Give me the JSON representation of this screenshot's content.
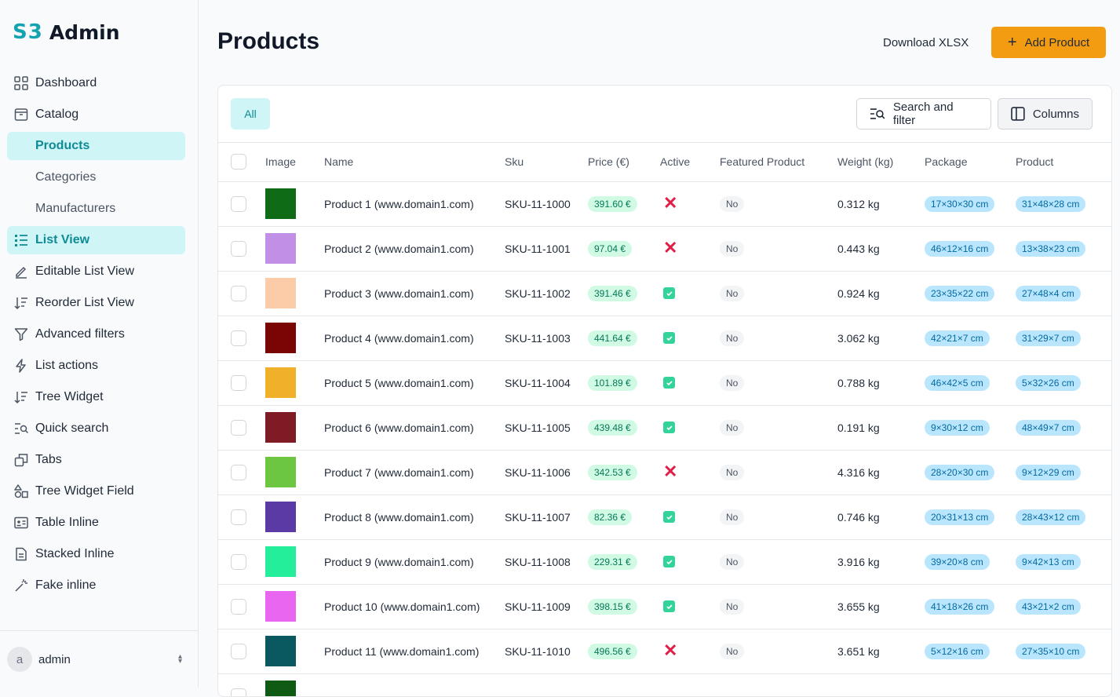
{
  "app": {
    "logo_mark": "S3",
    "logo_text": "Admin"
  },
  "sidebar": {
    "items": [
      {
        "label": "Dashboard",
        "icon": "dashboard-grid-icon"
      },
      {
        "label": "Catalog",
        "icon": "archive-box-icon"
      },
      {
        "label": "Products",
        "icon": "",
        "active": true
      },
      {
        "label": "Categories",
        "icon": ""
      },
      {
        "label": "Manufacturers",
        "icon": ""
      },
      {
        "label": "List View",
        "icon": "list-icon",
        "active": true
      },
      {
        "label": "Editable List View",
        "icon": "pencil-icon"
      },
      {
        "label": "Reorder List View",
        "icon": "sort-icon"
      },
      {
        "label": "Advanced filters",
        "icon": "filter-icon"
      },
      {
        "label": "List actions",
        "icon": "bolt-icon"
      },
      {
        "label": "Tree Widget",
        "icon": "tree-sort-icon"
      },
      {
        "label": "Quick search",
        "icon": "quick-search-icon"
      },
      {
        "label": "Tabs",
        "icon": "tabs-icon"
      },
      {
        "label": "Tree Widget Field",
        "icon": "shapes-icon"
      },
      {
        "label": "Table Inline",
        "icon": "id-card-icon"
      },
      {
        "label": "Stacked Inline",
        "icon": "document-icon"
      },
      {
        "label": "Fake inline",
        "icon": "magic-wand-icon"
      }
    ]
  },
  "user": {
    "initial": "a",
    "name": "admin"
  },
  "header": {
    "title": "Products",
    "download_label": "Download XLSX",
    "add_label": "Add Product"
  },
  "toolbar": {
    "tab_all": "All",
    "search_label": "Search and filter",
    "columns_label": "Columns"
  },
  "table": {
    "columns": [
      "Image",
      "Name",
      "Sku",
      "Price (€)",
      "Active",
      "Featured Product",
      "Weight (kg)",
      "Package",
      "Product"
    ],
    "rows": [
      {
        "color": "#0f6b16",
        "name": "Product 1 (www.domain1.com)",
        "sku": "SKU-11-1000",
        "price": "391.60 €",
        "active": false,
        "featured": "No",
        "weight": "0.312 kg",
        "package": "17×30×30 cm",
        "product": "31×48×28 cm"
      },
      {
        "color": "#c28fe6",
        "name": "Product 2 (www.domain1.com)",
        "sku": "SKU-11-1001",
        "price": "97.04 €",
        "active": false,
        "featured": "No",
        "weight": "0.443 kg",
        "package": "46×12×16 cm",
        "product": "13×38×23 cm"
      },
      {
        "color": "#fccba7",
        "name": "Product 3 (www.domain1.com)",
        "sku": "SKU-11-1002",
        "price": "391.46 €",
        "active": true,
        "featured": "No",
        "weight": "0.924 kg",
        "package": "23×35×22 cm",
        "product": "27×48×4 cm"
      },
      {
        "color": "#7a0505",
        "name": "Product 4 (www.domain1.com)",
        "sku": "SKU-11-1003",
        "price": "441.64 €",
        "active": true,
        "featured": "No",
        "weight": "3.062 kg",
        "package": "42×21×7 cm",
        "product": "31×29×7 cm"
      },
      {
        "color": "#f0b02a",
        "name": "Product 5 (www.domain1.com)",
        "sku": "SKU-11-1004",
        "price": "101.89 €",
        "active": true,
        "featured": "No",
        "weight": "0.788 kg",
        "package": "46×42×5 cm",
        "product": "5×32×26 cm"
      },
      {
        "color": "#7e1b24",
        "name": "Product 6 (www.domain1.com)",
        "sku": "SKU-11-1005",
        "price": "439.48 €",
        "active": true,
        "featured": "No",
        "weight": "0.191 kg",
        "package": "9×30×12 cm",
        "product": "48×49×7 cm"
      },
      {
        "color": "#6cc641",
        "name": "Product 7 (www.domain1.com)",
        "sku": "SKU-11-1006",
        "price": "342.53 €",
        "active": false,
        "featured": "No",
        "weight": "4.316 kg",
        "package": "28×20×30 cm",
        "product": "9×12×29 cm"
      },
      {
        "color": "#5b3aa5",
        "name": "Product 8 (www.domain1.com)",
        "sku": "SKU-11-1007",
        "price": "82.36 €",
        "active": true,
        "featured": "No",
        "weight": "0.746 kg",
        "package": "20×31×13 cm",
        "product": "28×43×12 cm"
      },
      {
        "color": "#25ee9a",
        "name": "Product 9 (www.domain1.com)",
        "sku": "SKU-11-1008",
        "price": "229.31 €",
        "active": true,
        "featured": "No",
        "weight": "3.916 kg",
        "package": "39×20×8 cm",
        "product": "9×42×13 cm"
      },
      {
        "color": "#e866f0",
        "name": "Product 10 (www.domain1.com)",
        "sku": "SKU-11-1009",
        "price": "398.15 €",
        "active": true,
        "featured": "No",
        "weight": "3.655 kg",
        "package": "41×18×26 cm",
        "product": "43×21×2 cm"
      },
      {
        "color": "#0a5960",
        "name": "Product 11 (www.domain1.com)",
        "sku": "SKU-11-1010",
        "price": "496.56 €",
        "active": false,
        "featured": "No",
        "weight": "3.651 kg",
        "package": "5×12×16 cm",
        "product": "27×35×10 cm"
      },
      {
        "color": "#0f5b14",
        "name": "",
        "sku": "",
        "price": "",
        "active": null,
        "featured": "",
        "weight": "",
        "package": "",
        "product": ""
      }
    ]
  }
}
